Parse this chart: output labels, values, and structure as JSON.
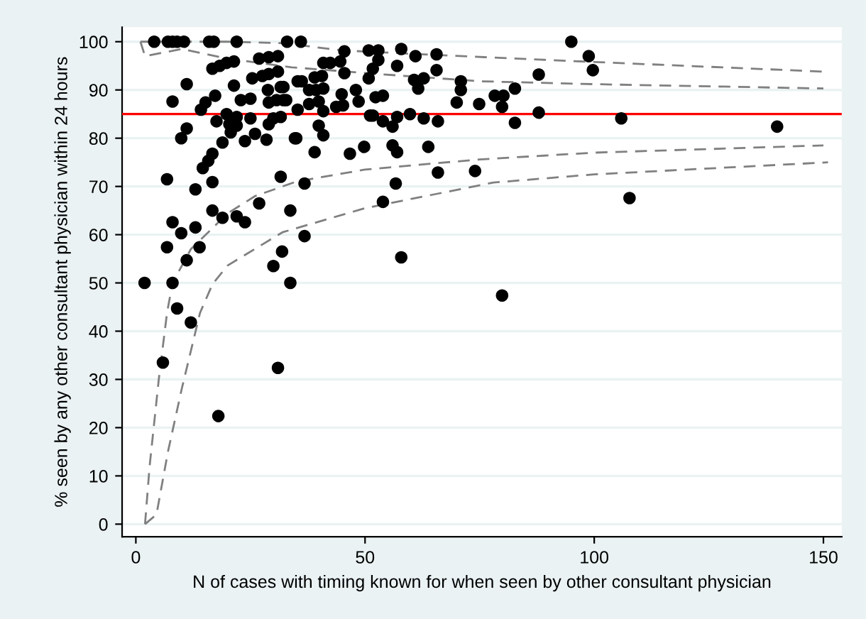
{
  "chart_data": {
    "type": "scatter",
    "xlabel": "N of cases with timing known for when seen by other consultant physician",
    "ylabel": "% seen by any other consultant physician within 24 hours",
    "xlim": [
      -3,
      154
    ],
    "xticks": [
      0,
      50,
      100,
      150
    ],
    "ylim": [
      -2.6,
      103
    ],
    "yticks": [
      0,
      10,
      20,
      30,
      40,
      50,
      60,
      70,
      80,
      90,
      100
    ],
    "grid": "y",
    "ref_lines": [
      {
        "axis": "y",
        "value": 85,
        "color": "#ff0000",
        "line_style": "solid"
      }
    ],
    "series": [
      {
        "marker": "circle",
        "color": "#000000",
        "x": [
          4,
          7,
          8,
          9,
          10.5,
          16,
          17,
          22,
          33,
          36,
          16.7,
          18.3,
          19.8,
          21.4,
          26.9,
          29,
          31,
          11.1,
          21.4,
          25.4,
          27.6,
          29,
          31,
          8,
          17.3,
          15.2,
          14.2,
          22.9,
          25,
          28.8,
          31.6,
          29,
          30.7,
          32.2,
          17.6,
          19.8,
          22,
          20.4,
          25,
          29,
          30,
          31.6,
          11.1,
          9.9,
          22,
          20.7,
          23.8,
          26,
          28.5,
          34.7,
          18.9,
          16.7,
          15.8,
          14.6,
          6.8,
          16.7,
          13,
          31.6,
          16.7,
          18.9,
          22,
          23.8,
          26.9,
          33.7,
          8,
          9.9,
          13,
          6.8,
          13.9,
          11.1,
          31.9,
          30,
          1.9,
          8,
          33.7,
          9,
          12,
          5.9,
          31,
          18,
          45.5,
          50.8,
          52.9,
          57.9,
          61,
          65.6,
          52.9,
          40.9,
          42.4,
          44.6,
          57,
          51.7,
          65.6,
          45.5,
          40.6,
          39,
          36.2,
          35.3,
          50.8,
          60.7,
          62.8,
          61.6,
          70.9,
          70.9,
          32.2,
          37.8,
          39.3,
          40.9,
          48,
          44.9,
          52.3,
          53.9,
          32.8,
          37.8,
          39.9,
          48.6,
          43.7,
          45.2,
          40.9,
          35.3,
          70,
          74.9,
          78.3,
          51.1,
          51.7,
          53.9,
          57,
          56,
          59.8,
          62.8,
          65.9,
          39.9,
          40.9,
          35,
          39,
          46.7,
          49.8,
          56,
          57,
          63.8,
          65.9,
          74,
          36.8,
          56.7,
          53.9,
          36.8,
          57.9,
          95,
          98.8,
          99.7,
          87.9,
          82.7,
          80.2,
          79.9,
          82.7,
          87.9,
          105.9,
          139.9,
          107.7,
          79.9
        ],
        "values": [
          100,
          100,
          100,
          100,
          100,
          100,
          100,
          100,
          100,
          100,
          94.4,
          95,
          95.6,
          95.9,
          96.5,
          96.8,
          97,
          91.2,
          90.9,
          92.4,
          92.9,
          93.3,
          93.8,
          87.6,
          88.8,
          87.4,
          85.9,
          87.9,
          88.2,
          90,
          90.6,
          87.4,
          87.9,
          87.9,
          83.5,
          85,
          84.4,
          82.9,
          84.1,
          82.9,
          84.1,
          84.4,
          82,
          80,
          82.6,
          81.2,
          79.4,
          80.9,
          79.7,
          80,
          79.1,
          76.8,
          75.3,
          73.8,
          71.5,
          70.9,
          69.4,
          72,
          65,
          63.5,
          63.8,
          62.6,
          66.5,
          65,
          62.6,
          60.3,
          61.5,
          57.4,
          57.4,
          54.7,
          56.5,
          53.5,
          50,
          50,
          50,
          44.7,
          41.8,
          33.5,
          32.4,
          22.4,
          98,
          98.2,
          98.2,
          98.5,
          97,
          97.4,
          96.2,
          95.6,
          95.6,
          95.9,
          95,
          94.4,
          94.1,
          93.5,
          92.9,
          92.6,
          91.8,
          91.8,
          92.4,
          92.1,
          92.4,
          90.3,
          91.8,
          90,
          90.6,
          90,
          90,
          90.3,
          90,
          89.1,
          88.5,
          88.8,
          87.9,
          87.1,
          87.6,
          87.6,
          86.5,
          86.8,
          85.6,
          85.9,
          87.4,
          87.1,
          88.8,
          84.7,
          84.7,
          83.5,
          84.4,
          82.4,
          85,
          84.1,
          83.5,
          82.6,
          80.6,
          80,
          77.1,
          76.8,
          78.2,
          78.5,
          77.1,
          78.2,
          72.9,
          73.2,
          70.6,
          70.6,
          66.8,
          59.7,
          55.3,
          100,
          97,
          94.1,
          93.2,
          90.3,
          88.8,
          86.5,
          83.2,
          85.3,
          84.1,
          82.4,
          67.6,
          47.4
        ]
      },
      {
        "type": "line",
        "color": "#808080",
        "line_style": "dashed",
        "x": [
          1,
          20,
          32,
          45,
          60,
          76,
          100,
          150
        ],
        "values": [
          100,
          100,
          99.7,
          98.2,
          97.5,
          96.8,
          95.8,
          93.8
        ]
      },
      {
        "type": "line",
        "color": "#808080",
        "line_style": "dashed",
        "x": [
          1,
          2,
          10,
          20,
          34,
          50,
          75,
          100,
          150
        ],
        "values": [
          100,
          97,
          98.5,
          96.5,
          94.7,
          93.5,
          91.8,
          91.2,
          90.3
        ]
      },
      {
        "type": "line",
        "color": "#808080",
        "line_style": "dashed",
        "x": [
          2,
          3,
          5,
          6.8,
          8,
          12,
          20,
          26,
          35,
          50,
          75,
          100,
          150
        ],
        "values": [
          0,
          12,
          30,
          43.8,
          50,
          57,
          64.4,
          68,
          71,
          73.5,
          75.6,
          77,
          78.5
        ]
      },
      {
        "type": "line",
        "color": "#808080",
        "line_style": "dashed",
        "x": [
          2,
          4.5,
          7,
          10,
          14,
          16.7,
          20,
          32,
          50,
          78,
          100,
          151
        ],
        "values": [
          0,
          2,
          15,
          28,
          43.8,
          49.7,
          53.6,
          60.5,
          65.5,
          70.8,
          72.5,
          75
        ]
      }
    ]
  }
}
